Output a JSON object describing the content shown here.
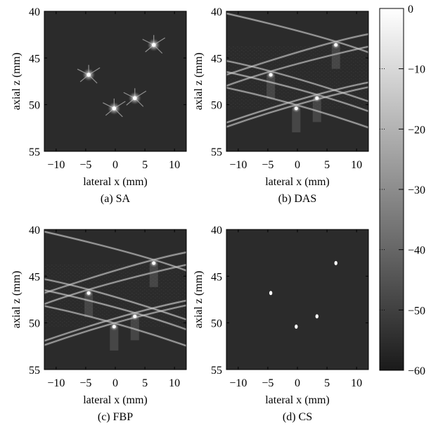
{
  "chart_data": {
    "type": "heatmap",
    "panels": [
      {
        "caption": "(a) SA",
        "xlabel": "lateral x (mm)",
        "ylabel": "axial z (mm)",
        "xlim": [
          -12,
          12
        ],
        "ylim": [
          55,
          40
        ],
        "xticks": [
          "−10",
          "−5",
          "0",
          "5",
          "10"
        ],
        "yticks": [
          "40",
          "45",
          "50",
          "55"
        ],
        "points": [
          {
            "x": -4.5,
            "z": 46.8
          },
          {
            "x": 6.5,
            "z": 43.6
          },
          {
            "x": 3.3,
            "z": 49.3
          },
          {
            "x": -0.2,
            "z": 50.4
          }
        ],
        "artifact": "star"
      },
      {
        "caption": "(b) DAS",
        "xlabel": "lateral x (mm)",
        "ylabel": "axial z (mm)",
        "xlim": [
          -12,
          12
        ],
        "ylim": [
          55,
          40
        ],
        "xticks": [
          "−10",
          "−5",
          "0",
          "5",
          "10"
        ],
        "yticks": [
          "40",
          "45",
          "50",
          "55"
        ],
        "points": [
          {
            "x": -4.5,
            "z": 46.8
          },
          {
            "x": 6.5,
            "z": 43.6
          },
          {
            "x": 3.3,
            "z": 49.3
          },
          {
            "x": -0.2,
            "z": 50.4
          }
        ],
        "artifact": "arcs"
      },
      {
        "caption": "(c) FBP",
        "xlabel": "lateral x (mm)",
        "ylabel": "axial z (mm)",
        "xlim": [
          -12,
          12
        ],
        "ylim": [
          55,
          40
        ],
        "xticks": [
          "−10",
          "−5",
          "0",
          "5",
          "10"
        ],
        "yticks": [
          "40",
          "45",
          "50",
          "55"
        ],
        "points": [
          {
            "x": -4.5,
            "z": 46.8
          },
          {
            "x": 6.5,
            "z": 43.6
          },
          {
            "x": 3.3,
            "z": 49.3
          },
          {
            "x": -0.2,
            "z": 50.4
          }
        ],
        "artifact": "arcs"
      },
      {
        "caption": "(d) CS",
        "xlabel": "lateral x (mm)",
        "ylabel": "axial z (mm)",
        "xlim": [
          -12,
          12
        ],
        "ylim": [
          55,
          40
        ],
        "xticks": [
          "−10",
          "−5",
          "0",
          "5",
          "10"
        ],
        "yticks": [
          "40",
          "45",
          "50",
          "55"
        ],
        "points": [
          {
            "x": -4.5,
            "z": 46.8
          },
          {
            "x": 6.5,
            "z": 43.6
          },
          {
            "x": 3.3,
            "z": 49.3
          },
          {
            "x": -0.2,
            "z": 50.4
          }
        ],
        "artifact": "none"
      }
    ],
    "colorbar": {
      "min": -60,
      "max": 0,
      "ticks": [
        "0",
        "−10",
        "−20",
        "−30",
        "−40",
        "−50",
        "−60"
      ],
      "colormap": "grayscale",
      "low_color": "#1a1a1a",
      "high_color": "#ffffff"
    },
    "background_color": "#2b2b2b"
  }
}
